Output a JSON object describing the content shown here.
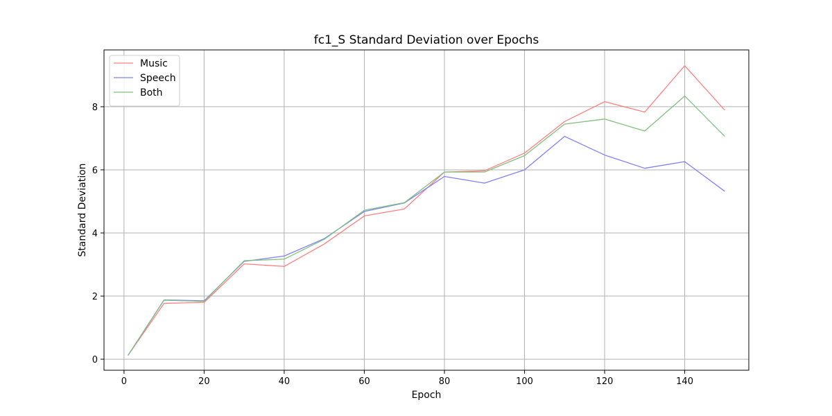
{
  "chart_data": {
    "type": "line",
    "title": "fc1_S Standard Deviation over Epochs",
    "xlabel": "Epoch",
    "ylabel": "Standard Deviation",
    "xlim": [
      -5,
      156
    ],
    "ylim": [
      -0.35,
      9.8
    ],
    "xticks": [
      0,
      20,
      40,
      60,
      80,
      100,
      120,
      140
    ],
    "yticks": [
      0,
      2,
      4,
      6,
      8
    ],
    "grid": true,
    "legend_position": "top-left",
    "x": [
      1,
      10,
      20,
      30,
      40,
      50,
      60,
      70,
      80,
      90,
      100,
      110,
      120,
      130,
      140,
      150
    ],
    "series": [
      {
        "name": "Music",
        "color": "#ff7f7f",
        "values": [
          0.12,
          1.77,
          1.8,
          3.02,
          2.94,
          3.65,
          4.54,
          4.76,
          5.93,
          5.97,
          6.53,
          7.53,
          8.16,
          7.83,
          9.3,
          7.89
        ]
      },
      {
        "name": "Speech",
        "color": "#7f7fff",
        "values": [
          0.12,
          1.88,
          1.85,
          3.1,
          3.27,
          3.82,
          4.68,
          4.95,
          5.79,
          5.58,
          6.0,
          7.06,
          6.47,
          6.05,
          6.26,
          5.32
        ]
      },
      {
        "name": "Both",
        "color": "#7fbf7f",
        "values": [
          0.12,
          1.87,
          1.83,
          3.12,
          3.17,
          3.8,
          4.72,
          4.96,
          5.93,
          5.93,
          6.45,
          7.45,
          7.61,
          7.23,
          8.34,
          7.06
        ]
      }
    ]
  }
}
